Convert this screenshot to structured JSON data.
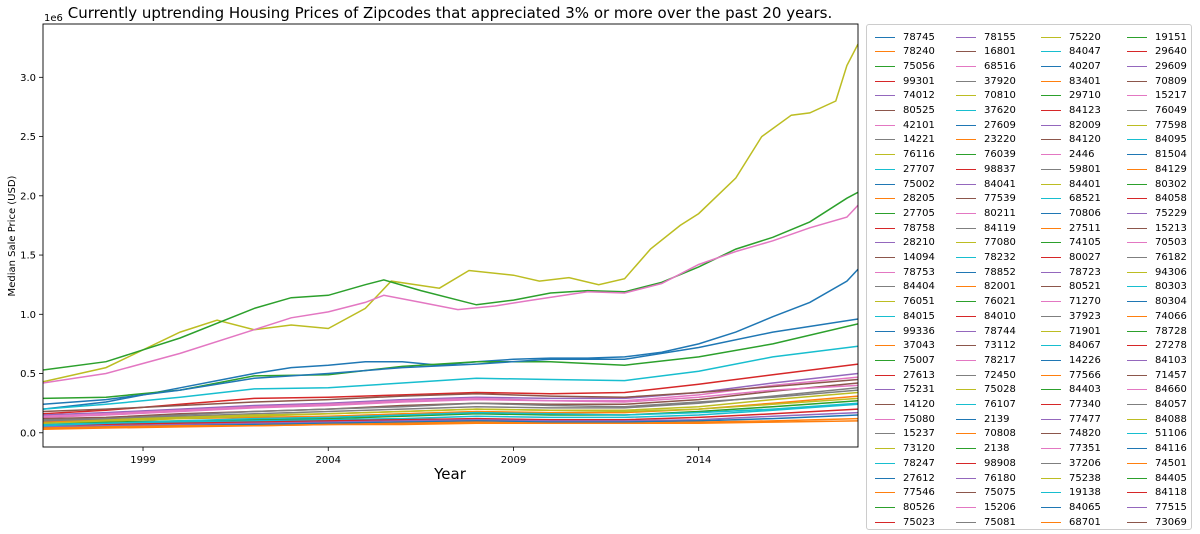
{
  "chart_data": {
    "type": "line",
    "title": "Currently uptrending Housing Prices of Zipcodes that appreciated 3% or more over the past 20 years.",
    "xlabel": "Year",
    "ylabel": "Median Sale Price (USD)",
    "y_offset_label": "1e6",
    "x_range": [
      1996.3,
      2018.3
    ],
    "y_range": [
      -0.12,
      3.45
    ],
    "x_ticks": [
      {
        "value": 1999,
        "label": "1999"
      },
      {
        "value": 2004,
        "label": "2004"
      },
      {
        "value": 2009,
        "label": "2009"
      },
      {
        "value": 2014,
        "label": "2014"
      }
    ],
    "y_ticks": [
      {
        "value": 0.0,
        "label": "0.0"
      },
      {
        "value": 0.5,
        "label": "0.5"
      },
      {
        "value": 1.0,
        "label": "1.0"
      },
      {
        "value": 1.5,
        "label": "1.5"
      },
      {
        "value": 2.0,
        "label": "2.0"
      },
      {
        "value": 2.5,
        "label": "2.5"
      },
      {
        "value": 3.0,
        "label": "3.0"
      }
    ],
    "legend_position": "outside-right",
    "grid": false,
    "palette": [
      "#1f77b4",
      "#ff7f0e",
      "#2ca02c",
      "#d62728",
      "#9467bd",
      "#8c564b",
      "#e377c2",
      "#7f7f7f",
      "#bcbd22",
      "#17becf"
    ],
    "series": [
      {
        "name": "78745",
        "color": "#bcbd22",
        "x": [
          1996.3,
          1998,
          2000,
          2001,
          2002,
          2003,
          2004,
          2005,
          2005.7,
          2007,
          2007.8,
          2009,
          2009.7,
          2010.5,
          2011.3,
          2012,
          2012.7,
          2013.5,
          2014,
          2015,
          2015.7,
          2016.5,
          2017,
          2017.7,
          2018,
          2018.3
        ],
        "y": [
          0.43,
          0.55,
          0.85,
          0.95,
          0.87,
          0.91,
          0.88,
          1.05,
          1.28,
          1.22,
          1.37,
          1.33,
          1.28,
          1.31,
          1.25,
          1.3,
          1.55,
          1.75,
          1.85,
          2.15,
          2.5,
          2.68,
          2.7,
          2.8,
          3.1,
          3.28
        ]
      },
      {
        "name": "78240",
        "color": "#2ca02c",
        "x": [
          1996.3,
          1998,
          2000,
          2002,
          2003,
          2004,
          2005,
          2005.5,
          2006.5,
          2008,
          2009,
          2010,
          2011,
          2012,
          2013,
          2014,
          2015,
          2016,
          2017,
          2018,
          2018.3
        ],
        "y": [
          0.53,
          0.6,
          0.8,
          1.05,
          1.14,
          1.16,
          1.25,
          1.29,
          1.2,
          1.08,
          1.12,
          1.18,
          1.2,
          1.19,
          1.27,
          1.4,
          1.55,
          1.65,
          1.78,
          1.98,
          2.03
        ]
      },
      {
        "name": "75056",
        "color": "#e377c2",
        "x": [
          1996.3,
          1998,
          2000,
          2002,
          2003,
          2004,
          2005,
          2005.5,
          2006.5,
          2007.5,
          2008.5,
          2009.5,
          2011,
          2012,
          2013,
          2014,
          2015,
          2016,
          2017,
          2018,
          2018.3
        ],
        "y": [
          0.42,
          0.5,
          0.67,
          0.87,
          0.97,
          1.02,
          1.1,
          1.16,
          1.1,
          1.04,
          1.07,
          1.12,
          1.19,
          1.18,
          1.26,
          1.42,
          1.53,
          1.62,
          1.73,
          1.82,
          1.92
        ]
      },
      {
        "name": "99301",
        "color": "#1f77b4",
        "x": [
          1996.3,
          1998,
          2000,
          2002,
          2003,
          2004,
          2005,
          2006,
          2007,
          2008,
          2009,
          2010,
          2011,
          2012,
          2013,
          2014,
          2015,
          2016,
          2017,
          2018,
          2018.3
        ],
        "y": [
          0.2,
          0.26,
          0.38,
          0.5,
          0.55,
          0.57,
          0.6,
          0.6,
          0.57,
          0.6,
          0.62,
          0.63,
          0.63,
          0.64,
          0.68,
          0.75,
          0.85,
          0.98,
          1.1,
          1.28,
          1.38
        ]
      },
      {
        "name": "74012",
        "color": "#2ca02c",
        "x": [
          1996.3,
          1998,
          2000,
          2002,
          2004,
          2006,
          2008,
          2010,
          2012,
          2014,
          2016,
          2018.3
        ],
        "y": [
          0.29,
          0.3,
          0.36,
          0.48,
          0.49,
          0.56,
          0.6,
          0.6,
          0.57,
          0.64,
          0.75,
          0.92
        ]
      },
      {
        "name": "80525",
        "color": "#1f77b4",
        "x": [
          1996.3,
          1998,
          2000,
          2002,
          2004,
          2006,
          2008,
          2010,
          2012,
          2014,
          2016,
          2018.3
        ],
        "y": [
          0.24,
          0.28,
          0.36,
          0.46,
          0.5,
          0.55,
          0.58,
          0.62,
          0.62,
          0.72,
          0.85,
          0.96
        ]
      },
      {
        "name": "42101",
        "color": "#17becf",
        "x": [
          1996.3,
          1998,
          2000,
          2002,
          2004,
          2006,
          2008,
          2010,
          2012,
          2014,
          2016,
          2018.3
        ],
        "y": [
          0.2,
          0.24,
          0.3,
          0.37,
          0.38,
          0.42,
          0.46,
          0.45,
          0.44,
          0.52,
          0.64,
          0.73
        ]
      },
      {
        "name": "14221",
        "color": "#d62728",
        "x": [
          1996.3,
          1998,
          2000,
          2002,
          2004,
          2006,
          2008,
          2010,
          2012,
          2014,
          2016,
          2018.3
        ],
        "y": [
          0.16,
          0.19,
          0.24,
          0.29,
          0.3,
          0.32,
          0.34,
          0.33,
          0.34,
          0.41,
          0.49,
          0.58
        ]
      },
      {
        "name": "76116",
        "color": "#9467bd",
        "x": [
          1996.3,
          1998,
          2000,
          2002,
          2004,
          2006,
          2008,
          2010,
          2012,
          2014,
          2016,
          2018.3
        ],
        "y": [
          0.15,
          0.17,
          0.2,
          0.23,
          0.25,
          0.28,
          0.3,
          0.29,
          0.29,
          0.34,
          0.42,
          0.5
        ]
      },
      {
        "name": "27707",
        "color": "#e377c2",
        "x": [
          1996.3,
          1998,
          2000,
          2002,
          2004,
          2006,
          2008,
          2010,
          2012,
          2014,
          2016,
          2018.3
        ],
        "y": [
          0.13,
          0.15,
          0.18,
          0.21,
          0.23,
          0.26,
          0.28,
          0.27,
          0.27,
          0.32,
          0.4,
          0.47
        ]
      },
      {
        "name": "75002",
        "color": "#8c564b",
        "x": [
          1996.3,
          1998,
          2000,
          2002,
          2004,
          2006,
          2008,
          2010,
          2012,
          2014,
          2016,
          2018.3
        ],
        "y": [
          0.12,
          0.13,
          0.16,
          0.18,
          0.2,
          0.23,
          0.25,
          0.24,
          0.24,
          0.28,
          0.35,
          0.42
        ]
      },
      {
        "name": "28205",
        "color": "#7f7f7f",
        "x": [
          1996.3,
          1998,
          2000,
          2002,
          2004,
          2006,
          2008,
          2010,
          2012,
          2014,
          2016,
          2018.3
        ],
        "y": [
          0.11,
          0.12,
          0.14,
          0.16,
          0.18,
          0.2,
          0.22,
          0.21,
          0.21,
          0.25,
          0.31,
          0.38
        ]
      },
      {
        "name": "27705",
        "color": "#bcbd22",
        "x": [
          1996.3,
          1998,
          2000,
          2002,
          2004,
          2006,
          2008,
          2010,
          2012,
          2014,
          2016,
          2018.3
        ],
        "y": [
          0.1,
          0.11,
          0.13,
          0.15,
          0.16,
          0.18,
          0.2,
          0.19,
          0.19,
          0.22,
          0.28,
          0.34
        ]
      },
      {
        "name": "78758",
        "color": "#ff7f0e",
        "x": [
          1996.3,
          1998,
          2000,
          2002,
          2004,
          2006,
          2008,
          2010,
          2012,
          2014,
          2016,
          2018.3
        ],
        "y": [
          0.09,
          0.1,
          0.12,
          0.13,
          0.14,
          0.16,
          0.18,
          0.17,
          0.17,
          0.2,
          0.25,
          0.31
        ]
      },
      {
        "name": "28210",
        "color": "#2ca02c",
        "x": [
          1996.3,
          1998,
          2000,
          2002,
          2004,
          2006,
          2008,
          2010,
          2012,
          2014,
          2016,
          2018.3
        ],
        "y": [
          0.08,
          0.09,
          0.1,
          0.11,
          0.12,
          0.14,
          0.16,
          0.15,
          0.15,
          0.18,
          0.22,
          0.27
        ]
      },
      {
        "name": "14094",
        "color": "#17becf",
        "x": [
          1996.3,
          1998,
          2000,
          2002,
          2004,
          2006,
          2008,
          2010,
          2012,
          2014,
          2016,
          2018.3
        ],
        "y": [
          0.07,
          0.08,
          0.09,
          0.1,
          0.11,
          0.12,
          0.14,
          0.13,
          0.13,
          0.15,
          0.19,
          0.24
        ]
      },
      {
        "name": "78753",
        "color": "#d62728",
        "x": [
          1996.3,
          1998,
          2000,
          2002,
          2004,
          2006,
          2008,
          2010,
          2012,
          2014,
          2016,
          2018.3
        ],
        "y": [
          0.06,
          0.07,
          0.08,
          0.09,
          0.1,
          0.11,
          0.12,
          0.11,
          0.11,
          0.13,
          0.16,
          0.2
        ]
      },
      {
        "name": "84404",
        "color": "#9467bd",
        "x": [
          1996.3,
          1998,
          2000,
          2002,
          2004,
          2006,
          2008,
          2010,
          2012,
          2014,
          2016,
          2018.3
        ],
        "y": [
          0.05,
          0.06,
          0.07,
          0.08,
          0.09,
          0.1,
          0.11,
          0.1,
          0.1,
          0.11,
          0.14,
          0.17
        ]
      },
      {
        "name": "76051",
        "color": "#1f77b4",
        "x": [
          1996.3,
          1998,
          2000,
          2002,
          2004,
          2006,
          2008,
          2010,
          2012,
          2014,
          2016,
          2018.3
        ],
        "y": [
          0.04,
          0.05,
          0.06,
          0.07,
          0.08,
          0.09,
          0.1,
          0.09,
          0.09,
          0.1,
          0.12,
          0.15
        ]
      },
      {
        "name": "84015",
        "color": "#ff7f0e",
        "x": [
          1996.3,
          1998,
          2000,
          2002,
          2004,
          2006,
          2008,
          2010,
          2012,
          2014,
          2016,
          2018.3
        ],
        "y": [
          0.03,
          0.04,
          0.05,
          0.06,
          0.07,
          0.08,
          0.09,
          0.08,
          0.08,
          0.09,
          0.1,
          0.12
        ]
      },
      {
        "name": "99336",
        "color": "#8c564b",
        "x": [
          1996.3,
          1998,
          2000,
          2002,
          2004,
          2006,
          2008,
          2010,
          2012,
          2014,
          2016,
          2018.3
        ],
        "y": [
          0.18,
          0.2,
          0.23,
          0.26,
          0.28,
          0.31,
          0.33,
          0.31,
          0.3,
          0.34,
          0.39,
          0.45
        ]
      },
      {
        "name": "37043",
        "color": "#e377c2",
        "x": [
          1996.3,
          1998,
          2000,
          2002,
          2004,
          2006,
          2008,
          2010,
          2012,
          2014,
          2016,
          2018.3
        ],
        "y": [
          0.14,
          0.16,
          0.19,
          0.22,
          0.24,
          0.27,
          0.29,
          0.27,
          0.26,
          0.3,
          0.36,
          0.4
        ]
      },
      {
        "name": "75007",
        "color": "#7f7f7f",
        "x": [
          1996.3,
          1998,
          2000,
          2002,
          2004,
          2006,
          2008,
          2010,
          2012,
          2014,
          2016,
          2018.3
        ],
        "y": [
          0.1,
          0.12,
          0.15,
          0.18,
          0.2,
          0.22,
          0.25,
          0.23,
          0.22,
          0.26,
          0.3,
          0.36
        ]
      },
      {
        "name": "27613",
        "color": "#bcbd22",
        "x": [
          1996.3,
          1998,
          2000,
          2002,
          2004,
          2006,
          2008,
          2010,
          2012,
          2014,
          2016,
          2018.3
        ],
        "y": [
          0.08,
          0.1,
          0.12,
          0.14,
          0.16,
          0.18,
          0.2,
          0.19,
          0.18,
          0.2,
          0.24,
          0.29
        ]
      },
      {
        "name": "75231",
        "color": "#17becf",
        "x": [
          1996.3,
          1998,
          2000,
          2002,
          2004,
          2006,
          2008,
          2010,
          2012,
          2014,
          2016,
          2018.3
        ],
        "y": [
          0.06,
          0.08,
          0.1,
          0.12,
          0.13,
          0.15,
          0.17,
          0.16,
          0.15,
          0.17,
          0.2,
          0.25
        ]
      },
      {
        "name": "14120",
        "color": "#ff7f0e",
        "x": [
          1996.3,
          1998,
          2000,
          2002,
          2004,
          2006,
          2008,
          2010,
          2012,
          2014,
          2016,
          2018.3
        ],
        "y": [
          0.04,
          0.05,
          0.06,
          0.06,
          0.07,
          0.07,
          0.08,
          0.08,
          0.08,
          0.08,
          0.09,
          0.1
        ]
      }
    ]
  },
  "legend": [
    [
      "78745",
      "78240",
      "75056",
      "99301",
      "74012",
      "80525",
      "42101",
      "14221",
      "76116",
      "27707",
      "75002",
      "28205",
      "27705",
      "78758",
      "28210",
      "14094",
      "78753",
      "84404",
      "76051",
      "84015",
      "99336",
      "37043",
      "75007",
      "27613",
      "75231",
      "14120",
      "75080",
      "15237",
      "73120",
      "78247",
      "27612",
      "77546",
      "80526",
      "75023"
    ],
    [
      "78155",
      "16801",
      "68516",
      "37920",
      "70810",
      "37620",
      "27609",
      "23220",
      "76039",
      "98837",
      "84041",
      "77539",
      "80211",
      "84119",
      "77080",
      "78232",
      "78852",
      "82001",
      "76021",
      "84010",
      "78744",
      "73112",
      "78217",
      "72450",
      "75028",
      "76107",
      "2139",
      "70808",
      "2138",
      "98908",
      "76180",
      "75075",
      "15206",
      "75081"
    ],
    [
      "75220",
      "84047",
      "40207",
      "83401",
      "29710",
      "84123",
      "82009",
      "84120",
      "2446",
      "59801",
      "84401",
      "68521",
      "70806",
      "27511",
      "74105",
      "80027",
      "78723",
      "80521",
      "71270",
      "37923",
      "71901",
      "84067",
      "14226",
      "77566",
      "84403",
      "77340",
      "77477",
      "74820",
      "77351",
      "37206",
      "75238",
      "19138",
      "84065",
      "68701"
    ],
    [
      "19151",
      "29640",
      "29609",
      "70809",
      "15217",
      "76049",
      "77598",
      "84095",
      "81504",
      "84129",
      "80302",
      "84058",
      "75229",
      "15213",
      "70503",
      "76182",
      "94306",
      "80303",
      "80304",
      "74066",
      "78728",
      "27278",
      "84103",
      "71457",
      "84660",
      "84057",
      "84088",
      "51106",
      "84116",
      "74501",
      "84405",
      "84118",
      "77515",
      "73069"
    ]
  ]
}
